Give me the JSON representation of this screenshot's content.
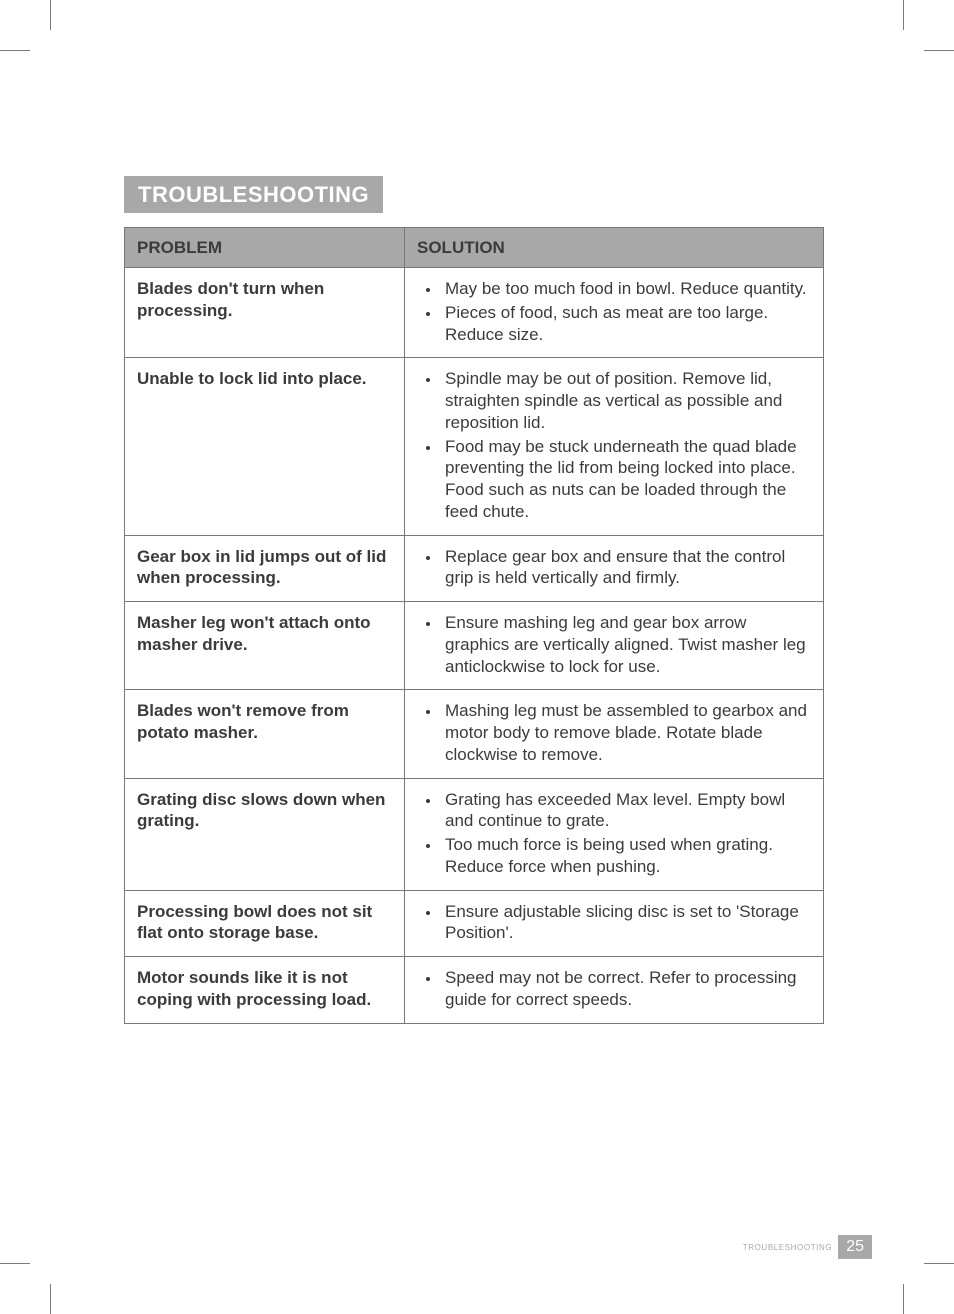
{
  "section_title": "TROUBLESHOOTING",
  "table": {
    "headers": {
      "problem": "PROBLEM",
      "solution": "SOLUTION"
    },
    "rows": [
      {
        "problem": "Blades don't turn when processing.",
        "solutions": [
          "May be too much food in bowl. Reduce quantity.",
          "Pieces of food, such as meat are too large. Reduce size."
        ]
      },
      {
        "problem": "Unable to lock lid into place.",
        "solutions": [
          "Spindle may be out of position. Remove lid, straighten spindle as vertical as possible and reposition lid.",
          "Food may be stuck underneath the quad blade preventing the lid from being locked into place. Food such as nuts can be loaded through the feed chute."
        ]
      },
      {
        "problem": "Gear box in lid jumps out of lid when processing.",
        "solutions": [
          "Replace gear box and ensure that the control grip is held vertically and firmly."
        ]
      },
      {
        "problem": "Masher leg won't attach onto masher drive.",
        "solutions": [
          "Ensure mashing leg and gear box arrow graphics are vertically aligned. Twist masher leg anticlockwise to lock for use."
        ]
      },
      {
        "problem": "Blades won't remove from potato masher.",
        "solutions": [
          "Mashing leg must be assembled to gearbox and motor body to remove blade. Rotate blade clockwise to remove."
        ]
      },
      {
        "problem": "Grating disc slows down when grating.",
        "solutions": [
          "Grating has exceeded Max level. Empty bowl and continue to grate.",
          "Too much force is being used when grating. Reduce force when pushing."
        ]
      },
      {
        "problem": "Processing bowl does not sit flat onto storage base.",
        "solutions": [
          "Ensure adjustable slicing disc is set to 'Storage Position'."
        ]
      },
      {
        "problem": "Motor sounds like it is not coping with processing load.",
        "solutions": [
          "Speed may not be correct. Refer to processing guide for correct speeds."
        ]
      }
    ]
  },
  "footer": {
    "label": "TROUBLESHOOTING",
    "page": "25"
  },
  "colors": {
    "header_bg": "#a8a8a8",
    "header_text_white": "#ffffff",
    "body_text": "#3b3b3b",
    "border": "#777777"
  }
}
